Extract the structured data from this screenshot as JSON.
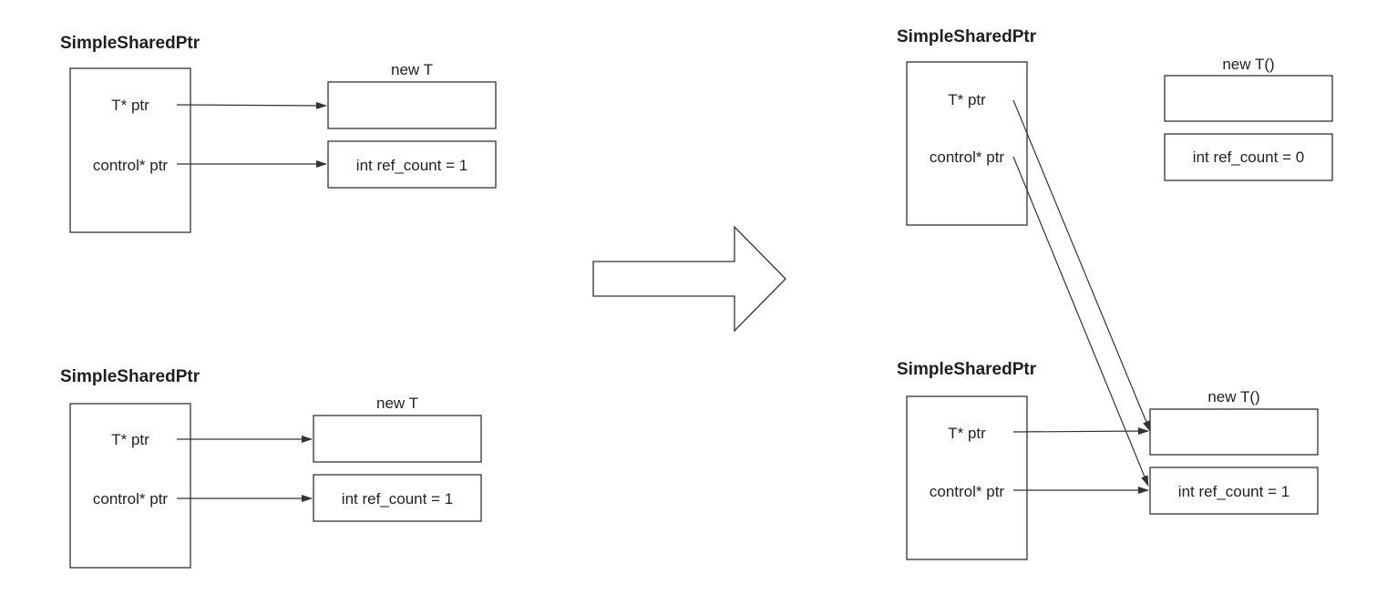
{
  "left_top": {
    "title": "SimpleSharedPtr",
    "field_ptr": "T* ptr",
    "field_control": "control* ptr",
    "object_label": "new T",
    "control_block": "int ref_count = 1"
  },
  "left_bottom": {
    "title": "SimpleSharedPtr",
    "field_ptr": "T* ptr",
    "field_control": "control* ptr",
    "object_label": "new T",
    "control_block": "int ref_count = 1"
  },
  "right_top": {
    "title": "SimpleSharedPtr",
    "field_ptr": "T* ptr",
    "field_control": "control* ptr",
    "object_label": "new T()",
    "control_block": "int ref_count = 0"
  },
  "right_bottom": {
    "title": "SimpleSharedPtr",
    "field_ptr": "T* ptr",
    "field_control": "control* ptr",
    "object_label": "new T()",
    "control_block": "int ref_count = 1"
  },
  "colors": {
    "stroke": "#333333",
    "background": "#ffffff"
  }
}
